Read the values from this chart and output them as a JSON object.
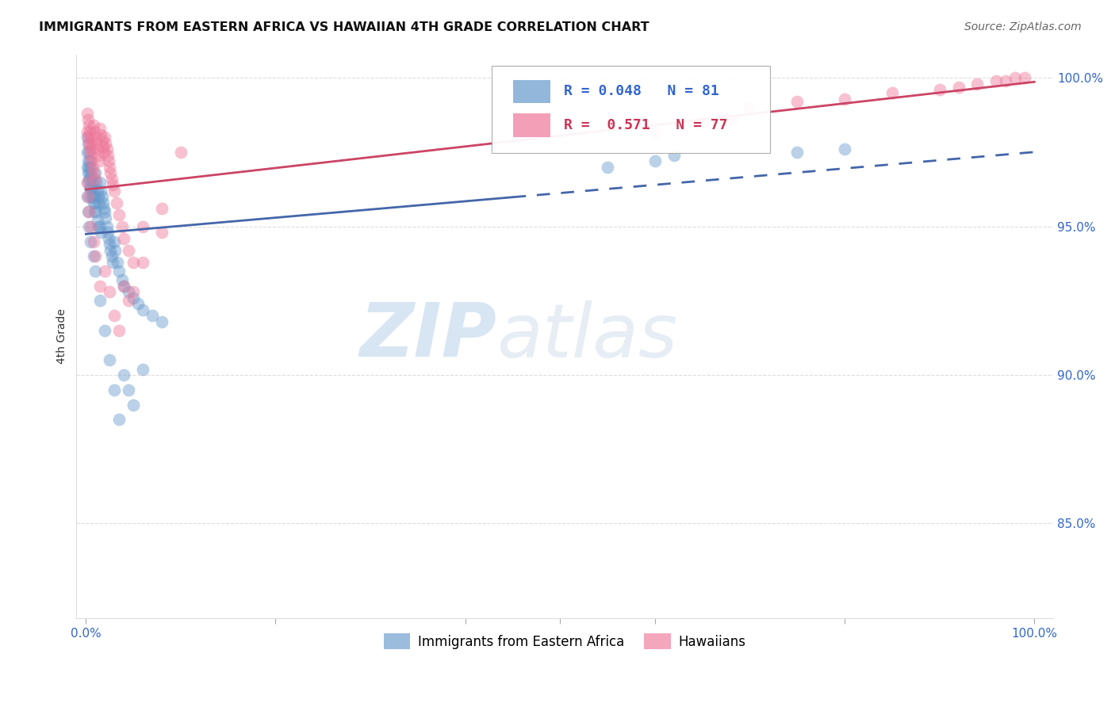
{
  "title": "IMMIGRANTS FROM EASTERN AFRICA VS HAWAIIAN 4TH GRADE CORRELATION CHART",
  "source": "Source: ZipAtlas.com",
  "ylabel": "4th Grade",
  "legend_r_blue": "0.048",
  "legend_n_blue": "81",
  "legend_r_pink": "0.571",
  "legend_n_pink": "77",
  "blue_color": "#6699CC",
  "pink_color": "#EE7799",
  "blue_line_color": "#4466AA",
  "pink_line_color": "#CC4466",
  "watermark_zip": "ZIP",
  "watermark_atlas": "atlas",
  "ylim_low": 0.818,
  "ylim_high": 1.008,
  "blue_x": [
    0.001,
    0.001,
    0.001,
    0.002,
    0.002,
    0.002,
    0.002,
    0.003,
    0.003,
    0.003,
    0.004,
    0.004,
    0.004,
    0.005,
    0.005,
    0.005,
    0.006,
    0.006,
    0.007,
    0.007,
    0.008,
    0.008,
    0.009,
    0.009,
    0.01,
    0.01,
    0.011,
    0.011,
    0.012,
    0.012,
    0.013,
    0.013,
    0.014,
    0.015,
    0.015,
    0.016,
    0.016,
    0.017,
    0.018,
    0.019,
    0.02,
    0.021,
    0.022,
    0.023,
    0.024,
    0.025,
    0.026,
    0.027,
    0.028,
    0.03,
    0.031,
    0.033,
    0.035,
    0.038,
    0.04,
    0.045,
    0.05,
    0.055,
    0.06,
    0.07,
    0.08,
    0.001,
    0.002,
    0.003,
    0.005,
    0.008,
    0.01,
    0.015,
    0.02,
    0.025,
    0.03,
    0.035,
    0.04,
    0.045,
    0.05,
    0.06,
    0.55,
    0.6,
    0.62,
    0.75,
    0.8
  ],
  "blue_y": [
    0.98,
    0.975,
    0.97,
    0.978,
    0.972,
    0.968,
    0.965,
    0.975,
    0.97,
    0.966,
    0.972,
    0.968,
    0.963,
    0.97,
    0.966,
    0.96,
    0.967,
    0.963,
    0.965,
    0.96,
    0.963,
    0.958,
    0.96,
    0.955,
    0.968,
    0.958,
    0.965,
    0.955,
    0.962,
    0.952,
    0.96,
    0.95,
    0.958,
    0.965,
    0.95,
    0.962,
    0.948,
    0.96,
    0.958,
    0.956,
    0.955,
    0.953,
    0.95,
    0.948,
    0.946,
    0.944,
    0.942,
    0.94,
    0.938,
    0.945,
    0.942,
    0.938,
    0.935,
    0.932,
    0.93,
    0.928,
    0.926,
    0.924,
    0.922,
    0.92,
    0.918,
    0.96,
    0.955,
    0.95,
    0.945,
    0.94,
    0.935,
    0.925,
    0.915,
    0.905,
    0.895,
    0.885,
    0.9,
    0.895,
    0.89,
    0.902,
    0.97,
    0.972,
    0.974,
    0.975,
    0.976
  ],
  "pink_x": [
    0.001,
    0.001,
    0.002,
    0.002,
    0.003,
    0.003,
    0.004,
    0.004,
    0.005,
    0.005,
    0.006,
    0.006,
    0.007,
    0.007,
    0.008,
    0.008,
    0.009,
    0.01,
    0.01,
    0.011,
    0.012,
    0.013,
    0.014,
    0.015,
    0.016,
    0.017,
    0.018,
    0.019,
    0.02,
    0.021,
    0.022,
    0.023,
    0.024,
    0.025,
    0.026,
    0.027,
    0.028,
    0.03,
    0.032,
    0.035,
    0.038,
    0.04,
    0.045,
    0.05,
    0.06,
    0.08,
    0.1,
    0.001,
    0.002,
    0.003,
    0.005,
    0.008,
    0.01,
    0.015,
    0.02,
    0.025,
    0.03,
    0.035,
    0.04,
    0.045,
    0.05,
    0.06,
    0.08,
    0.6,
    0.65,
    0.68,
    0.7,
    0.75,
    0.8,
    0.85,
    0.9,
    0.92,
    0.94,
    0.96,
    0.97,
    0.98,
    0.99
  ],
  "pink_y": [
    0.988,
    0.982,
    0.986,
    0.98,
    0.984,
    0.978,
    0.982,
    0.976,
    0.98,
    0.974,
    0.978,
    0.972,
    0.976,
    0.97,
    0.984,
    0.968,
    0.982,
    0.98,
    0.966,
    0.978,
    0.976,
    0.974,
    0.972,
    0.983,
    0.981,
    0.979,
    0.977,
    0.975,
    0.98,
    0.978,
    0.976,
    0.974,
    0.972,
    0.97,
    0.968,
    0.966,
    0.964,
    0.962,
    0.958,
    0.954,
    0.95,
    0.946,
    0.942,
    0.938,
    0.95,
    0.956,
    0.975,
    0.965,
    0.96,
    0.955,
    0.95,
    0.945,
    0.94,
    0.93,
    0.935,
    0.928,
    0.92,
    0.915,
    0.93,
    0.925,
    0.928,
    0.938,
    0.948,
    0.982,
    0.985,
    0.986,
    0.99,
    0.992,
    0.993,
    0.995,
    0.996,
    0.997,
    0.998,
    0.999,
    0.999,
    1.0,
    1.0
  ]
}
